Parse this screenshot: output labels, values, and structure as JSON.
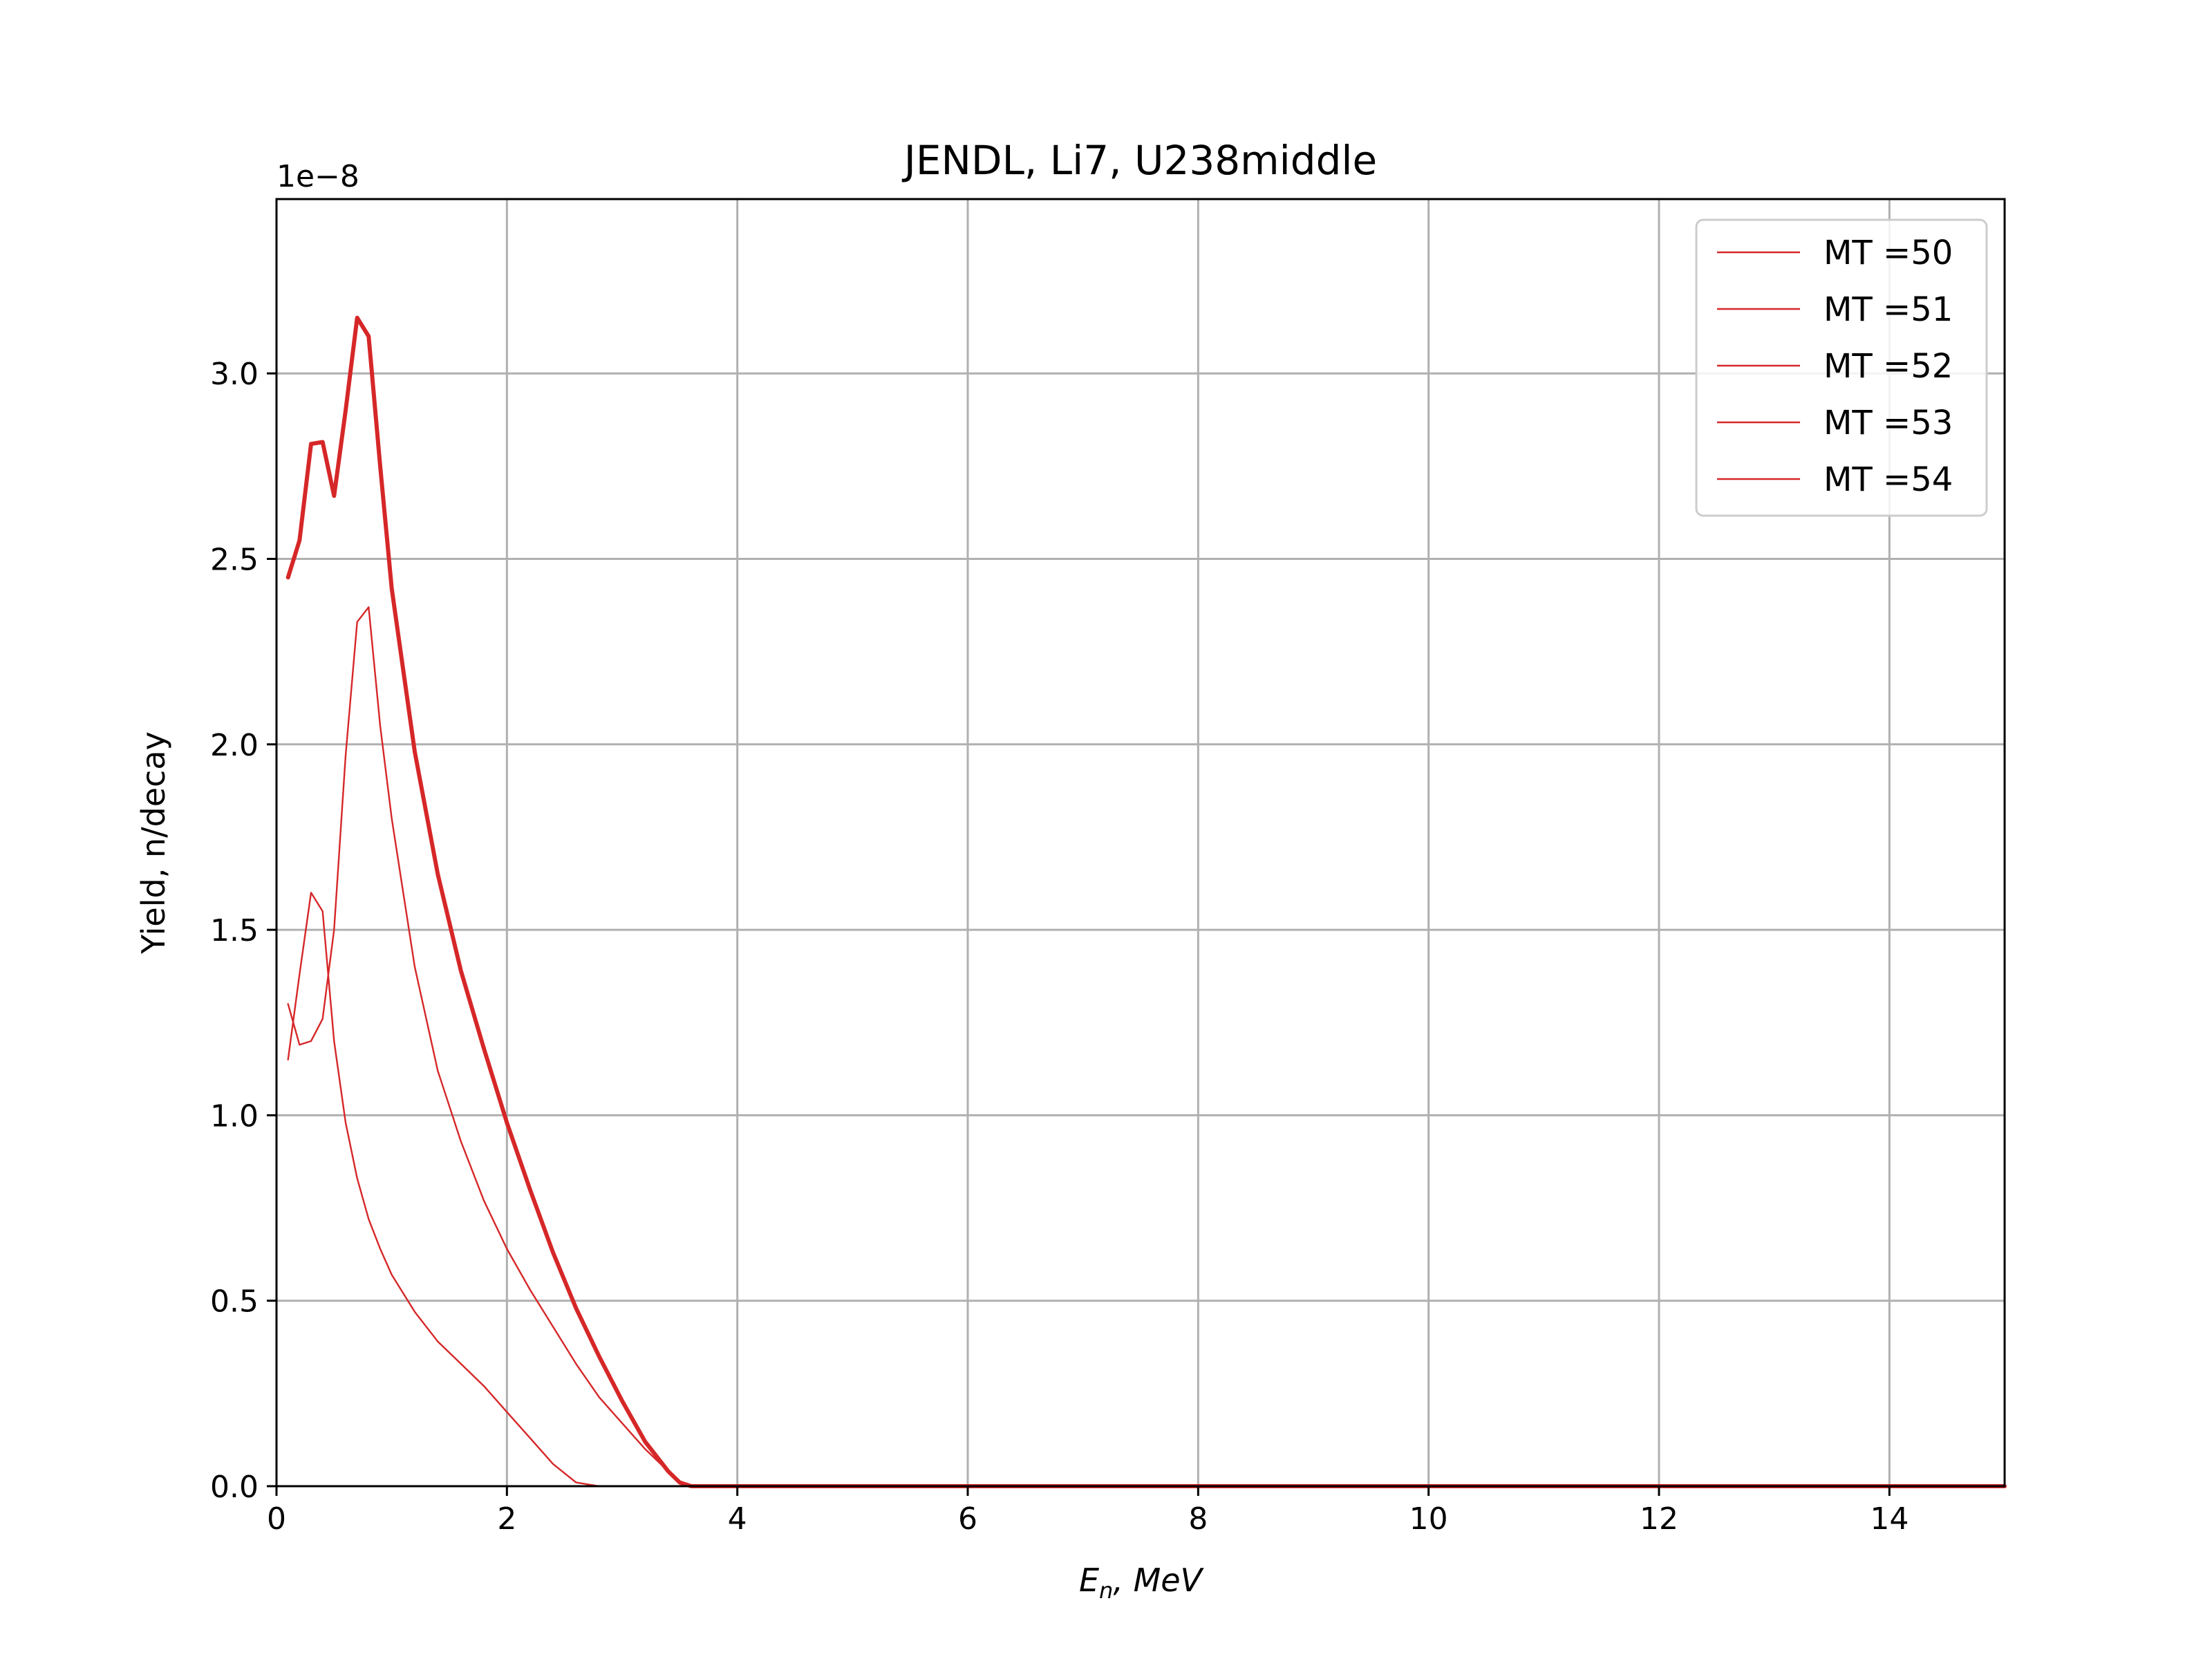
{
  "chart_data": {
    "type": "line",
    "title": "JENDL, Li7, U238middle",
    "xlabel_main": "E",
    "xlabel_sub": "n",
    "xlabel_rest": ", MeV",
    "ylabel": "Yield, n/decay",
    "y_offset_label": "1e−8",
    "xlim": [
      0,
      15
    ],
    "ylim": [
      0,
      3.47
    ],
    "x_ticks": [
      0,
      2,
      4,
      6,
      8,
      10,
      12,
      14
    ],
    "x_tick_labels": [
      "0",
      "2",
      "4",
      "6",
      "8",
      "10",
      "12",
      "14"
    ],
    "y_ticks": [
      0,
      0.5,
      1.0,
      1.5,
      2.0,
      2.5,
      3.0
    ],
    "y_tick_labels": [
      "0.0",
      "0.5",
      "1.0",
      "1.5",
      "2.0",
      "2.5",
      "3.0"
    ],
    "grid": true,
    "legend_position": "top-right",
    "series_color": "#d62728",
    "series": [
      {
        "name": "MT =50",
        "x": [
          0.1,
          0.2,
          0.3,
          0.4,
          0.5,
          0.6,
          0.7,
          0.8,
          0.9,
          1.0,
          1.2,
          1.4,
          1.6,
          1.8,
          2.0,
          2.2,
          2.4,
          2.6,
          2.8,
          3.0,
          3.2,
          3.4,
          3.5,
          3.6,
          4.0,
          6.0,
          8.0,
          10.0,
          12.0,
          15.0
        ],
        "y": [
          2.45,
          2.55,
          2.81,
          2.815,
          2.67,
          2.9,
          3.15,
          3.1,
          2.75,
          2.42,
          1.98,
          1.65,
          1.39,
          1.18,
          0.98,
          0.8,
          0.63,
          0.48,
          0.35,
          0.23,
          0.12,
          0.04,
          0.01,
          0.0,
          0.0,
          0.0,
          0.0,
          0.0,
          0.0,
          0.0
        ]
      },
      {
        "name": "MT =51",
        "x": [
          0.1,
          0.2,
          0.3,
          0.4,
          0.5,
          0.6,
          0.7,
          0.8,
          0.9,
          1.0,
          1.2,
          1.4,
          1.6,
          1.8,
          2.0,
          2.2,
          2.4,
          2.6,
          2.8,
          3.0,
          3.2,
          3.4,
          3.5,
          3.6,
          4.0,
          6.0,
          8.0,
          10.0,
          12.0,
          15.0
        ],
        "y": [
          1.3,
          1.19,
          1.2,
          1.26,
          1.5,
          1.97,
          2.33,
          2.37,
          2.05,
          1.8,
          1.4,
          1.12,
          0.93,
          0.77,
          0.64,
          0.53,
          0.43,
          0.33,
          0.24,
          0.17,
          0.1,
          0.04,
          0.01,
          0.0,
          0.0,
          0.0,
          0.0,
          0.0,
          0.0,
          0.0
        ]
      },
      {
        "name": "MT =52",
        "x": [
          0.1,
          0.2,
          0.3,
          0.4,
          0.5,
          0.6,
          0.7,
          0.8,
          0.9,
          1.0,
          1.2,
          1.4,
          1.6,
          1.8,
          2.0,
          2.2,
          2.4,
          2.6,
          2.8,
          3.0,
          4.0,
          6.0,
          8.0,
          10.0,
          12.0,
          15.0
        ],
        "y": [
          1.15,
          1.38,
          1.6,
          1.55,
          1.2,
          0.98,
          0.83,
          0.72,
          0.64,
          0.57,
          0.47,
          0.39,
          0.33,
          0.27,
          0.2,
          0.13,
          0.06,
          0.01,
          0.0,
          0.0,
          0.0,
          0.0,
          0.0,
          0.0,
          0.0,
          0.0
        ]
      },
      {
        "name": "MT =53",
        "x": [
          0.1,
          2.0,
          4.0,
          6.0,
          8.0,
          10.0,
          12.0,
          15.0
        ],
        "y": [
          0.0,
          0.0,
          0.0,
          0.0,
          0.0,
          0.0,
          0.0,
          0.0
        ]
      },
      {
        "name": "MT =54",
        "x": [
          0.1,
          2.0,
          4.0,
          6.0,
          8.0,
          10.0,
          12.0,
          15.0
        ],
        "y": [
          0.0,
          0.0,
          0.0,
          0.0,
          0.0,
          0.0,
          0.0,
          0.0
        ]
      }
    ]
  }
}
